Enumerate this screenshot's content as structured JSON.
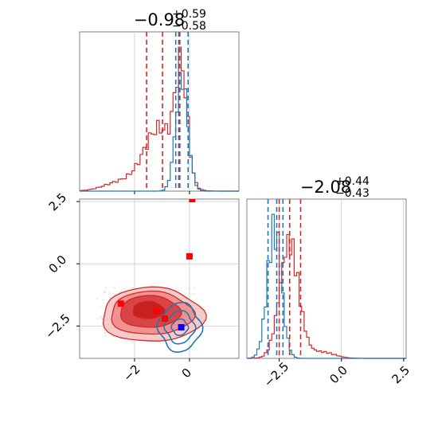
{
  "chart_data": {
    "type": "corner",
    "colors": {
      "series_a": "#d62728",
      "series_b": "#1f77b4"
    },
    "params": [
      {
        "title_value": "−0.98",
        "title_sup": "+0.59",
        "title_sub": "−0.58",
        "xlim": [
          -4.0,
          1.8
        ],
        "red_quantile_lines": [
          -1.56,
          -0.98,
          -0.39
        ],
        "blue_quantile_lines": [
          -0.5,
          -0.35,
          -0.05
        ],
        "xticks": [
          -2,
          0
        ],
        "xtick_labels": [
          "−2",
          "0"
        ]
      },
      {
        "title_value": "−2.08",
        "title_sup": "+0.44",
        "title_sub": "−0.43",
        "xlim": [
          -3.8,
          2.6
        ],
        "red_quantile_lines": [
          -2.5,
          -2.08,
          -1.64
        ],
        "blue_quantile_lines": [
          -2.95,
          -2.6,
          -2.35
        ],
        "xticks": [
          -2.5,
          0.0,
          2.5
        ],
        "xtick_labels": [
          "−2.5",
          "0.0",
          "2.5"
        ]
      }
    ],
    "joint": {
      "xlim": [
        -4.0,
        1.8
      ],
      "ylim": [
        -3.8,
        2.6
      ],
      "yticks": [
        -2.5,
        0.0,
        2.5
      ],
      "ytick_labels": [
        "−2.5",
        "0.0",
        "2.5"
      ],
      "red_points": [
        {
          "x": -2.5,
          "y": -1.6
        },
        {
          "x": -1.2,
          "y": -1.9
        },
        {
          "x": -0.9,
          "y": -2.2
        },
        {
          "x": 0.0,
          "y": 0.3
        },
        {
          "x": 0.1,
          "y": 2.6
        }
      ],
      "blue_points": [
        {
          "x": -0.3,
          "y": -2.55
        }
      ],
      "red_contour_center": {
        "x": -1.5,
        "y": -1.8
      },
      "blue_contour_center": {
        "x": -0.35,
        "y": -2.55
      }
    }
  }
}
